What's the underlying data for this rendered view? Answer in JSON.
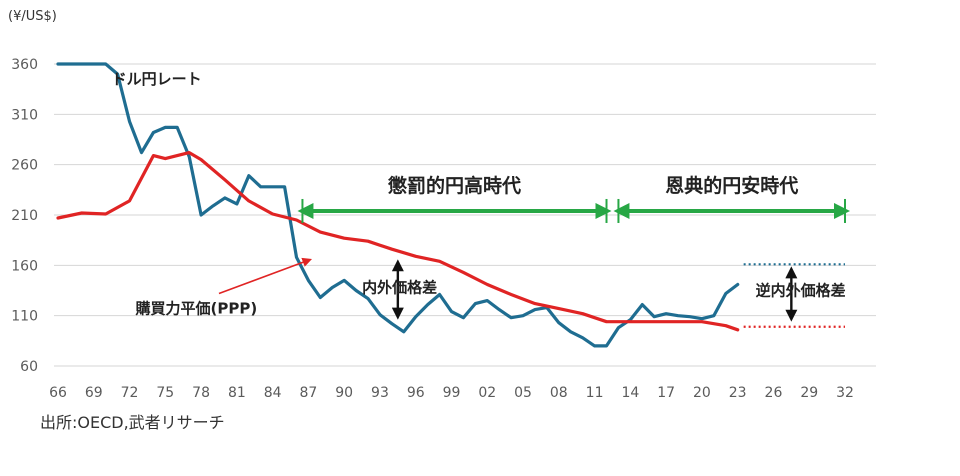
{
  "chart_data": {
    "type": "line",
    "unit_label": "(¥/US$)",
    "source": "出所:OECD,武者リサーチ",
    "xlim": [
      1966,
      2032
    ],
    "ylim": [
      60,
      370
    ],
    "y_ticks": [
      360,
      310,
      260,
      210,
      160,
      110,
      60
    ],
    "x_ticks": [
      {
        "year": 1966,
        "label": "66"
      },
      {
        "year": 1969,
        "label": "69"
      },
      {
        "year": 1972,
        "label": "72"
      },
      {
        "year": 1975,
        "label": "75"
      },
      {
        "year": 1978,
        "label": "78"
      },
      {
        "year": 1981,
        "label": "81"
      },
      {
        "year": 1984,
        "label": "84"
      },
      {
        "year": 1987,
        "label": "87"
      },
      {
        "year": 1990,
        "label": "90"
      },
      {
        "year": 1993,
        "label": "93"
      },
      {
        "year": 1996,
        "label": "96"
      },
      {
        "year": 1999,
        "label": "99"
      },
      {
        "year": 2002,
        "label": "02"
      },
      {
        "year": 2005,
        "label": "05"
      },
      {
        "year": 2008,
        "label": "08"
      },
      {
        "year": 2011,
        "label": "11"
      },
      {
        "year": 2014,
        "label": "14"
      },
      {
        "year": 2017,
        "label": "17"
      },
      {
        "year": 2020,
        "label": "20"
      },
      {
        "year": 2023,
        "label": "23"
      },
      {
        "year": 2026,
        "label": "26"
      },
      {
        "year": 2029,
        "label": "29"
      },
      {
        "year": 2032,
        "label": "32"
      }
    ],
    "series": [
      {
        "name": "ドル円レート",
        "color": "#1f6d91",
        "x": [
          1966,
          1967,
          1968,
          1969,
          1970,
          1971,
          1972,
          1973,
          1974,
          1975,
          1976,
          1977,
          1978,
          1979,
          1980,
          1981,
          1982,
          1983,
          1984,
          1985,
          1986,
          1987,
          1988,
          1989,
          1990,
          1991,
          1992,
          1993,
          1994,
          1995,
          1996,
          1997,
          1998,
          1999,
          2000,
          2001,
          2002,
          2003,
          2004,
          2005,
          2006,
          2007,
          2008,
          2009,
          2010,
          2011,
          2012,
          2013,
          2014,
          2015,
          2016,
          2017,
          2018,
          2019,
          2020,
          2021,
          2022,
          2023
        ],
        "y": [
          360,
          360,
          360,
          360,
          360,
          350,
          303,
          272,
          292,
          297,
          297,
          268,
          210,
          219,
          227,
          221,
          249,
          238,
          238,
          238,
          168,
          145,
          128,
          138,
          145,
          135,
          127,
          111,
          102,
          94,
          109,
          121,
          131,
          114,
          108,
          122,
          125,
          116,
          108,
          110,
          116,
          118,
          103,
          94,
          88,
          80,
          80,
          98,
          106,
          121,
          109,
          112,
          110,
          109,
          107,
          110,
          132,
          141
        ]
      },
      {
        "name": "購買力平価(PPP)",
        "color": "#e02424",
        "x": [
          1966,
          1968,
          1970,
          1972,
          1974,
          1975,
          1977,
          1978,
          1980,
          1982,
          1984,
          1986,
          1988,
          1990,
          1992,
          1994,
          1996,
          1998,
          2000,
          2002,
          2004,
          2006,
          2008,
          2010,
          2012,
          2014,
          2016,
          2018,
          2020,
          2022,
          2023
        ],
        "y": [
          207,
          212,
          211,
          224,
          269,
          266,
          272,
          265,
          245,
          224,
          211,
          205,
          193,
          187,
          184,
          176,
          169,
          164,
          153,
          141,
          131,
          122,
          117,
          112,
          104,
          104,
          104,
          104,
          104,
          100,
          96
        ]
      }
    ],
    "projections": [
      {
        "x": [
          2023.5,
          2032
        ],
        "y": [
          161,
          161
        ],
        "color": "#1f6d91",
        "style": "dotted"
      },
      {
        "x": [
          2023.5,
          2032
        ],
        "y": [
          99,
          99
        ],
        "color": "#e02424",
        "style": "dotted"
      }
    ],
    "annotations": {
      "dollar_yen_label": {
        "text": "ドル円レート",
        "x": 1970.5,
        "y": 340
      },
      "ppp_label": {
        "text": "購買力平価(PPP)",
        "x": 1972.5,
        "y": 112
      },
      "ppp_arrow": {
        "from": [
          1979.5,
          132
        ],
        "to": [
          1987,
          165
        ],
        "color": "#e02424"
      },
      "era_punitive": {
        "text": "懲罰的円高時代",
        "x_start": 1986.5,
        "x_end": 2012,
        "y": 214,
        "text_y": 233,
        "color": "#27a745"
      },
      "era_beneficial": {
        "text": "恩典的円安時代",
        "x_start": 2013,
        "x_end": 2032,
        "y": 214,
        "text_y": 233,
        "color": "#27a745"
      },
      "gap": {
        "text": "内外価格差",
        "x": 1994.5,
        "y_top": 164,
        "y_bottom": 108,
        "text_x": 1991.5,
        "text_y": 133
      },
      "reverse_gap": {
        "text": "逆内外価格差",
        "x": 2027.5,
        "y_top": 157,
        "y_bottom": 106,
        "text_x": 2024.5,
        "text_y": 130
      }
    }
  }
}
